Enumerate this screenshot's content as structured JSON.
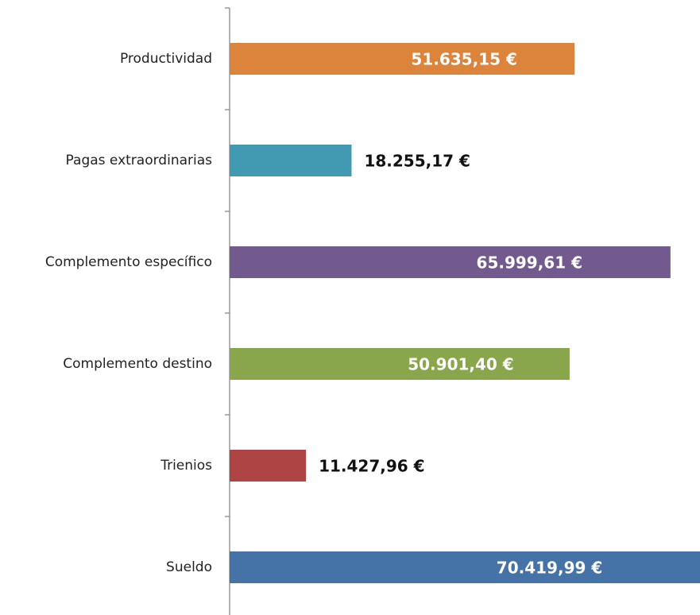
{
  "chart_data": {
    "type": "bar",
    "categories": [
      "Productividad",
      "Pagas extraordinarias",
      "Complemento específico",
      "Complemento destino",
      "Trienios",
      "Sueldo"
    ],
    "values": [
      51635.15,
      18255.17,
      65999.61,
      50901.4,
      11427.96,
      70419.99
    ],
    "value_labels": [
      "51.635,15 €",
      "18.255,17 €",
      "65.999,61 €",
      "50.901,40 €",
      "11.427,96 €",
      "70.419,99 €"
    ],
    "colors": [
      "#dd843c",
      "#4199b2",
      "#725a8f",
      "#8aa64c",
      "#ae4544",
      "#4573a7"
    ]
  }
}
